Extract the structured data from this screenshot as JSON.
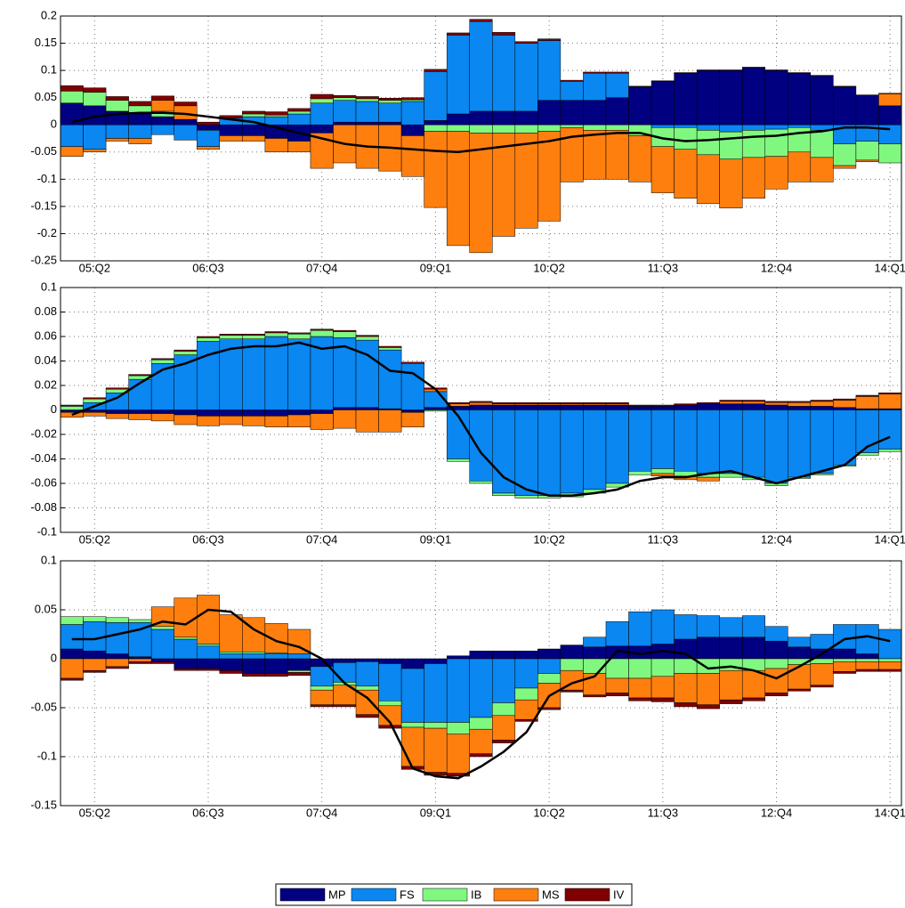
{
  "chart_data": [
    {
      "type": "stacked-bar-line",
      "categories": [
        null,
        "05:Q2",
        null,
        null,
        null,
        null,
        "06:Q3",
        null,
        null,
        null,
        null,
        "07:Q4",
        null,
        null,
        null,
        null,
        "09:Q1",
        null,
        null,
        null,
        null,
        "10:Q2",
        null,
        null,
        null,
        null,
        "11:Q3",
        null,
        null,
        null,
        null,
        "12:Q4",
        null,
        null,
        null,
        null,
        "14:Q1"
      ],
      "ylim": [
        -0.25,
        0.2
      ],
      "yticks": [
        -0.25,
        -0.2,
        -0.15,
        -0.1,
        -0.05,
        0,
        0.05,
        0.1,
        0.15,
        0.2
      ],
      "grid": true,
      "series": [
        {
          "name": "MP",
          "color": "#000080",
          "values": [
            0.04,
            0.035,
            0.025,
            0.02,
            0.015,
            0.01,
            -0.01,
            -0.02,
            -0.02,
            -0.025,
            -0.03,
            -0.015,
            0.005,
            0.005,
            0.005,
            -0.02,
            0.008,
            0.02,
            0.025,
            0.025,
            0.025,
            0.045,
            0.045,
            0.045,
            0.05,
            0.07,
            0.08,
            0.095,
            0.1,
            0.1,
            0.105,
            0.1,
            0.095,
            0.09,
            0.07,
            0.055,
            0.035
          ]
        },
        {
          "name": "FS",
          "color": "#0a87f0",
          "values": [
            -0.04,
            -0.045,
            -0.025,
            -0.025,
            -0.018,
            -0.028,
            -0.03,
            0.012,
            0.015,
            0.015,
            0.02,
            0.04,
            0.04,
            0.038,
            0.035,
            0.043,
            0.09,
            0.145,
            0.165,
            0.14,
            0.125,
            0.11,
            0.035,
            0.05,
            0.045,
            0.0,
            -0.005,
            -0.005,
            -0.01,
            -0.013,
            -0.01,
            -0.008,
            -0.005,
            -0.01,
            -0.035,
            -0.03,
            -0.035
          ]
        },
        {
          "name": "IB",
          "color": "#80f880",
          "values": [
            0.022,
            0.025,
            0.02,
            0.015,
            0.01,
            0.0,
            0.0,
            0.0,
            0.005,
            0.003,
            0.005,
            0.008,
            0.005,
            0.005,
            0.005,
            0.003,
            -0.012,
            -0.012,
            -0.015,
            -0.015,
            -0.015,
            -0.012,
            -0.005,
            -0.01,
            -0.01,
            -0.02,
            -0.035,
            -0.04,
            -0.045,
            -0.05,
            -0.05,
            -0.05,
            -0.045,
            -0.05,
            -0.04,
            -0.035,
            -0.035
          ]
        },
        {
          "name": "MS",
          "color": "#ff7f0e",
          "values": [
            -0.018,
            -0.005,
            -0.005,
            -0.01,
            0.02,
            0.025,
            -0.005,
            -0.01,
            -0.01,
            -0.025,
            -0.02,
            -0.065,
            -0.07,
            -0.08,
            -0.085,
            -0.075,
            -0.14,
            -0.21,
            -0.22,
            -0.19,
            -0.175,
            -0.165,
            -0.1,
            -0.09,
            -0.09,
            -0.085,
            -0.085,
            -0.09,
            -0.09,
            -0.09,
            -0.075,
            -0.06,
            -0.055,
            -0.045,
            -0.005,
            -0.003,
            0.022
          ]
        },
        {
          "name": "IV",
          "color": "#800000",
          "values": [
            0.01,
            0.008,
            0.007,
            0.008,
            0.008,
            0.007,
            0.005,
            0.005,
            0.005,
            0.006,
            0.005,
            0.008,
            0.004,
            0.004,
            0.004,
            0.004,
            0.004,
            0.004,
            0.004,
            0.005,
            0.003,
            0.003,
            0.002,
            0.002,
            0.002,
            0.001,
            0.001,
            0.001,
            0.001,
            0.001,
            0.001,
            0.001,
            0.001,
            0.001,
            0.001,
            0.0,
            0.001
          ]
        }
      ],
      "line": {
        "color": "#000000",
        "values": [
          0.005,
          0.015,
          0.02,
          0.022,
          0.022,
          0.02,
          0.015,
          0.01,
          0.005,
          -0.005,
          -0.015,
          -0.025,
          -0.035,
          -0.04,
          -0.042,
          -0.045,
          -0.048,
          -0.05,
          -0.045,
          -0.04,
          -0.035,
          -0.03,
          -0.022,
          -0.018,
          -0.015,
          -0.015,
          -0.025,
          -0.03,
          -0.028,
          -0.025,
          -0.022,
          -0.02,
          -0.015,
          -0.012,
          -0.005,
          -0.005,
          -0.008
        ]
      }
    },
    {
      "type": "stacked-bar-line",
      "categories": [
        null,
        "05:Q2",
        null,
        null,
        null,
        null,
        "06:Q3",
        null,
        null,
        null,
        null,
        "07:Q4",
        null,
        null,
        null,
        null,
        "09:Q1",
        null,
        null,
        null,
        null,
        "10:Q2",
        null,
        null,
        null,
        null,
        "11:Q3",
        null,
        null,
        null,
        null,
        "12:Q4",
        null,
        null,
        null,
        null,
        "14:Q1"
      ],
      "ylim": [
        -0.1,
        0.1
      ],
      "yticks": [
        -0.1,
        -0.08,
        -0.06,
        -0.04,
        -0.02,
        0,
        0.02,
        0.04,
        0.06,
        0.08,
        0.1
      ],
      "grid": true,
      "series": [
        {
          "color": "#000080",
          "values": [
            -0.002,
            -0.002,
            -0.003,
            -0.003,
            -0.003,
            -0.004,
            -0.005,
            -0.005,
            -0.005,
            -0.005,
            -0.004,
            -0.003,
            0.002,
            0.002,
            0.001,
            -0.002,
            0.002,
            0.003,
            0.004,
            0.004,
            0.004,
            0.004,
            0.004,
            0.004,
            0.004,
            0.003,
            0.003,
            0.004,
            0.005,
            0.005,
            0.005,
            0.004,
            0.003,
            0.003,
            0.002,
            0.001,
            0.001
          ]
        },
        {
          "color": "#0a87f0",
          "values": [
            0.0,
            0.006,
            0.014,
            0.025,
            0.038,
            0.045,
            0.056,
            0.058,
            0.058,
            0.06,
            0.058,
            0.06,
            0.057,
            0.055,
            0.048,
            0.038,
            0.013,
            -0.04,
            -0.058,
            -0.068,
            -0.07,
            -0.07,
            -0.068,
            -0.065,
            -0.06,
            -0.05,
            -0.048,
            -0.05,
            -0.052,
            -0.052,
            -0.055,
            -0.06,
            -0.055,
            -0.052,
            -0.045,
            -0.035,
            -0.032
          ]
        },
        {
          "color": "#80f880",
          "values": [
            0.003,
            0.003,
            0.003,
            0.003,
            0.003,
            0.003,
            0.003,
            0.003,
            0.003,
            0.003,
            0.004,
            0.005,
            0.005,
            0.003,
            0.002,
            0.0,
            -0.001,
            -0.002,
            -0.002,
            -0.002,
            -0.002,
            -0.002,
            -0.003,
            -0.003,
            -0.003,
            -0.003,
            -0.004,
            -0.004,
            -0.003,
            -0.003,
            -0.002,
            -0.002,
            -0.001,
            -0.001,
            -0.001,
            -0.002,
            -0.002
          ]
        },
        {
          "color": "#ff7f0e",
          "values": [
            -0.004,
            -0.003,
            -0.004,
            -0.005,
            -0.006,
            -0.008,
            -0.008,
            -0.007,
            -0.008,
            -0.009,
            -0.01,
            -0.013,
            -0.015,
            -0.018,
            -0.018,
            -0.012,
            0.002,
            0.002,
            0.002,
            0.001,
            0.001,
            0.001,
            0.001,
            0.001,
            0.001,
            0.0,
            -0.002,
            -0.003,
            -0.003,
            0.002,
            0.002,
            0.002,
            0.003,
            0.004,
            0.006,
            0.01,
            0.012
          ]
        },
        {
          "color": "#800000",
          "values": [
            0.001,
            0.001,
            0.001,
            0.001,
            0.001,
            0.001,
            0.001,
            0.001,
            0.001,
            0.001,
            0.001,
            0.001,
            0.001,
            0.001,
            0.001,
            0.001,
            0.001,
            0.001,
            0.001,
            0.001,
            0.001,
            0.001,
            0.001,
            0.001,
            0.001,
            0.001,
            0.001,
            0.001,
            0.001,
            0.001,
            0.001,
            0.001,
            0.001,
            0.001,
            0.001,
            0.001,
            0.001
          ]
        }
      ],
      "line": {
        "color": "#000000",
        "values": [
          -0.004,
          0.003,
          0.01,
          0.022,
          0.033,
          0.038,
          0.045,
          0.05,
          0.052,
          0.052,
          0.055,
          0.05,
          0.052,
          0.045,
          0.032,
          0.03,
          0.017,
          -0.005,
          -0.035,
          -0.055,
          -0.065,
          -0.07,
          -0.07,
          -0.068,
          -0.065,
          -0.058,
          -0.055,
          -0.055,
          -0.052,
          -0.05,
          -0.055,
          -0.06,
          -0.055,
          -0.05,
          -0.045,
          -0.03,
          -0.022
        ]
      }
    },
    {
      "type": "stacked-bar-line",
      "categories": [
        null,
        "05:Q2",
        null,
        null,
        null,
        null,
        "06:Q3",
        null,
        null,
        null,
        null,
        "07:Q4",
        null,
        null,
        null,
        null,
        "09:Q1",
        null,
        null,
        null,
        null,
        "10:Q2",
        null,
        null,
        null,
        null,
        "11:Q3",
        null,
        null,
        null,
        null,
        "12:Q4",
        null,
        null,
        null,
        null,
        "14:Q1"
      ],
      "ylim": [
        -0.15,
        0.1
      ],
      "yticks": [
        -0.15,
        -0.1,
        -0.05,
        0,
        0.05,
        0.1
      ],
      "grid": true,
      "series": [
        {
          "color": "#000080",
          "values": [
            0.01,
            0.008,
            0.005,
            0.002,
            -0.003,
            -0.01,
            -0.01,
            -0.012,
            -0.015,
            -0.015,
            -0.012,
            -0.008,
            -0.004,
            -0.003,
            -0.005,
            -0.01,
            -0.005,
            0.003,
            0.008,
            0.008,
            0.008,
            0.01,
            0.014,
            0.012,
            0.013,
            0.013,
            0.015,
            0.02,
            0.022,
            0.022,
            0.022,
            0.018,
            0.012,
            0.01,
            0.01,
            0.005,
            0.0
          ]
        },
        {
          "color": "#0a87f0",
          "values": [
            0.025,
            0.03,
            0.032,
            0.035,
            0.03,
            0.02,
            0.013,
            0.005,
            0.005,
            0.005,
            0.005,
            -0.02,
            -0.02,
            -0.025,
            -0.038,
            -0.055,
            -0.06,
            -0.065,
            -0.06,
            -0.045,
            -0.03,
            -0.015,
            0.0,
            0.01,
            0.025,
            0.035,
            0.035,
            0.025,
            0.022,
            0.02,
            0.022,
            0.015,
            0.01,
            0.015,
            0.025,
            0.03,
            0.03
          ]
        },
        {
          "color": "#80f880",
          "values": [
            0.008,
            0.005,
            0.005,
            0.003,
            0.003,
            0.002,
            0.002,
            0.002,
            0.002,
            0.001,
            -0.002,
            -0.004,
            -0.003,
            -0.004,
            -0.005,
            -0.005,
            -0.006,
            -0.012,
            -0.012,
            -0.013,
            -0.012,
            -0.01,
            -0.012,
            -0.015,
            -0.02,
            -0.02,
            -0.018,
            -0.015,
            -0.015,
            -0.012,
            -0.012,
            -0.01,
            -0.006,
            -0.005,
            -0.003,
            -0.003,
            -0.003
          ]
        },
        {
          "color": "#ff7f0e",
          "values": [
            -0.02,
            -0.012,
            -0.008,
            -0.003,
            0.02,
            0.04,
            0.05,
            0.038,
            0.035,
            0.03,
            0.025,
            -0.015,
            -0.02,
            -0.025,
            -0.02,
            -0.04,
            -0.045,
            -0.04,
            -0.025,
            -0.025,
            -0.02,
            -0.025,
            -0.02,
            -0.022,
            -0.015,
            -0.02,
            -0.022,
            -0.03,
            -0.032,
            -0.03,
            -0.028,
            -0.025,
            -0.025,
            -0.022,
            -0.01,
            -0.008,
            -0.008
          ]
        },
        {
          "color": "#800000",
          "values": [
            -0.002,
            -0.002,
            -0.002,
            -0.002,
            -0.002,
            -0.002,
            -0.002,
            -0.003,
            -0.003,
            -0.003,
            -0.003,
            -0.002,
            -0.002,
            -0.003,
            -0.003,
            -0.003,
            -0.003,
            -0.003,
            -0.003,
            -0.003,
            -0.002,
            -0.002,
            -0.002,
            -0.002,
            -0.003,
            -0.003,
            -0.004,
            -0.004,
            -0.004,
            -0.004,
            -0.003,
            -0.003,
            -0.002,
            -0.002,
            -0.002,
            -0.002,
            -0.002
          ]
        }
      ],
      "line": {
        "color": "#000000",
        "values": [
          0.02,
          0.02,
          0.025,
          0.03,
          0.038,
          0.035,
          0.05,
          0.048,
          0.03,
          0.018,
          0.012,
          0.0,
          -0.025,
          -0.04,
          -0.065,
          -0.112,
          -0.12,
          -0.122,
          -0.11,
          -0.095,
          -0.075,
          -0.038,
          -0.025,
          -0.018,
          0.008,
          0.005,
          0.008,
          0.005,
          -0.01,
          -0.008,
          -0.012,
          -0.02,
          -0.008,
          0.005,
          0.02,
          0.023,
          0.018
        ]
      }
    }
  ]
}
